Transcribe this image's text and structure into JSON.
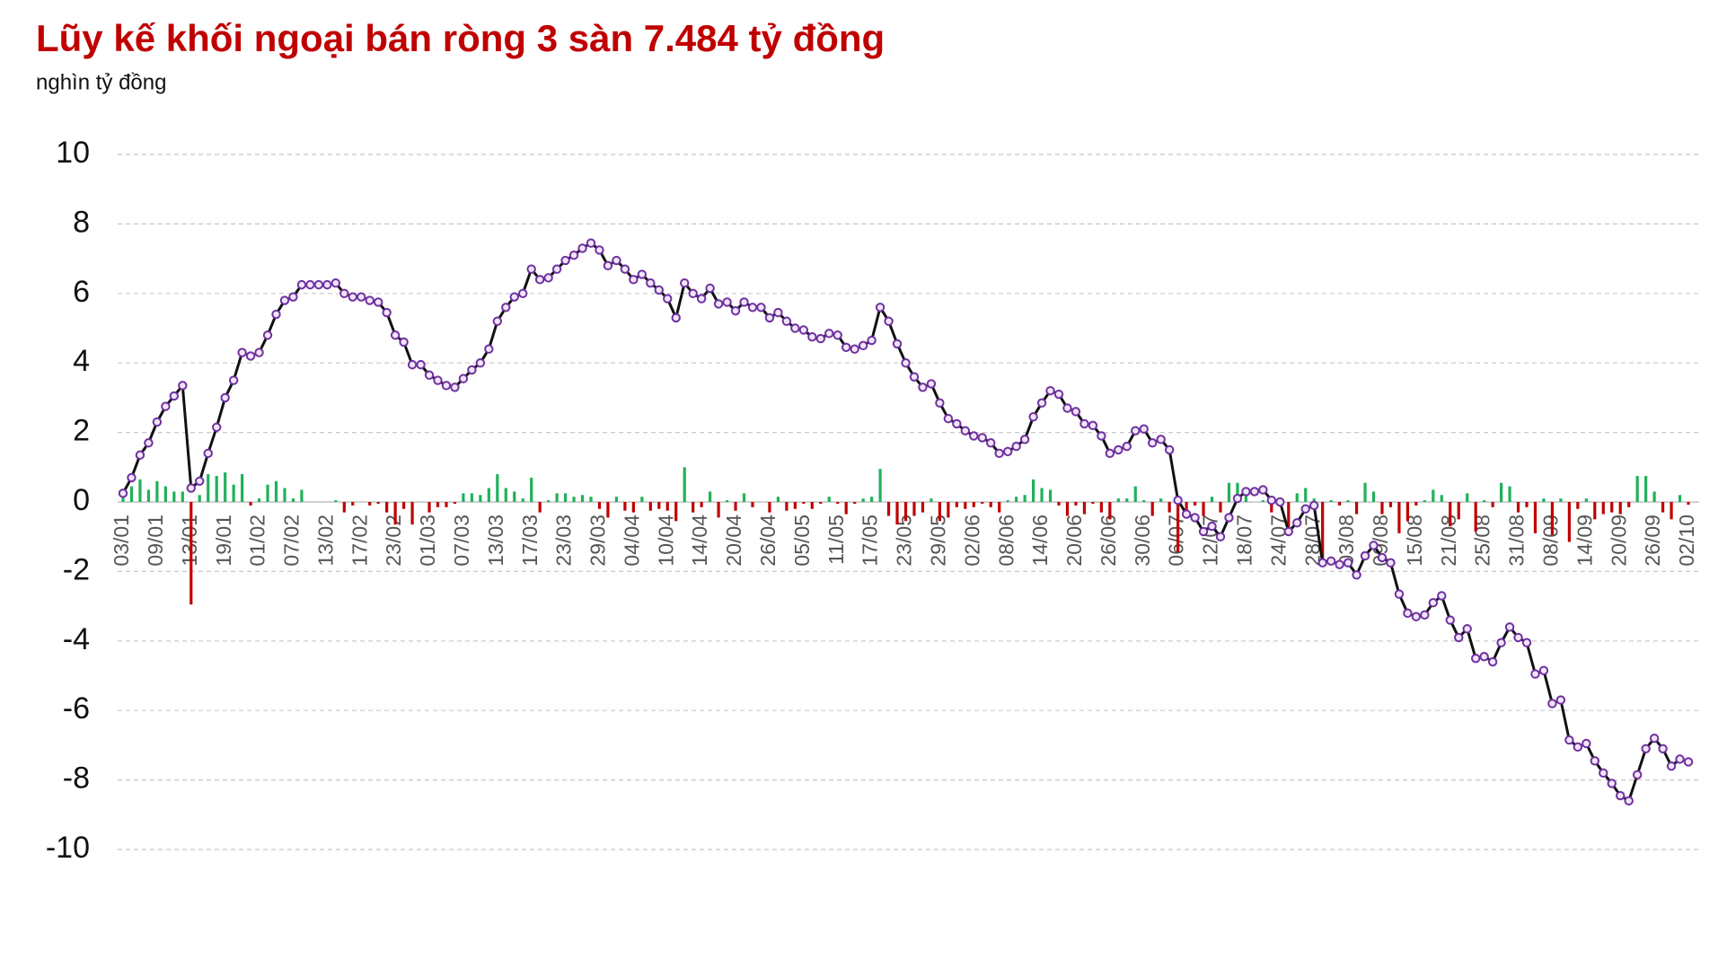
{
  "chart_data": {
    "type": "combo",
    "title": "Lũy kế khối ngoại bán ròng 3 sàn 7.484 tỷ đồng",
    "subtitle": "nghìn tỷ đồng",
    "categories": [
      "03/01",
      null,
      null,
      null,
      "09/01",
      null,
      null,
      null,
      "13/01",
      null,
      null,
      null,
      "19/01",
      null,
      null,
      null,
      "01/02",
      null,
      null,
      null,
      "07/02",
      null,
      null,
      null,
      "13/02",
      null,
      null,
      null,
      "17/02",
      null,
      null,
      null,
      "23/02",
      null,
      null,
      null,
      "01/03",
      null,
      null,
      null,
      "07/03",
      null,
      null,
      null,
      "13/03",
      null,
      null,
      null,
      "17/03",
      null,
      null,
      null,
      "23/03",
      null,
      null,
      null,
      "29/03",
      null,
      null,
      null,
      "04/04",
      null,
      null,
      null,
      "10/04",
      null,
      null,
      null,
      "14/04",
      null,
      null,
      null,
      "20/04",
      null,
      null,
      null,
      "26/04",
      null,
      null,
      null,
      "05/05",
      null,
      null,
      null,
      "11/05",
      null,
      null,
      null,
      "17/05",
      null,
      null,
      null,
      "23/05",
      null,
      null,
      null,
      "29/05",
      null,
      null,
      null,
      "02/06",
      null,
      null,
      null,
      "08/06",
      null,
      null,
      null,
      "14/06",
      null,
      null,
      null,
      "20/06",
      null,
      null,
      null,
      "26/06",
      null,
      null,
      null,
      "30/06",
      null,
      null,
      null,
      "06/07",
      null,
      null,
      null,
      "12/07",
      null,
      null,
      null,
      "18/07",
      null,
      null,
      null,
      "24/07",
      null,
      null,
      null,
      "28/07",
      null,
      null,
      null,
      "03/08",
      null,
      null,
      null,
      "09/08",
      null,
      null,
      null,
      "15/08",
      null,
      null,
      null,
      "21/08",
      null,
      null,
      null,
      "25/08",
      null,
      null,
      null,
      "31/08",
      null,
      null,
      null,
      "08/09",
      null,
      null,
      null,
      "14/09",
      null,
      null,
      null,
      "20/09",
      null,
      null,
      null,
      "26/09",
      null,
      null,
      null,
      "02/10"
    ],
    "series": [
      {
        "type": "bar",
        "color_positive": "#21b15a",
        "color_negative": "#c00000",
        "values": [
          0.25,
          0.45,
          0.65,
          0.35,
          0.6,
          0.45,
          0.3,
          0.3,
          -2.95,
          0.2,
          0.8,
          0.75,
          0.85,
          0.5,
          0.8,
          -0.1,
          0.1,
          0.5,
          0.6,
          0.4,
          0.1,
          0.35,
          0,
          0,
          0,
          0.05,
          -0.3,
          -0.1,
          0,
          -0.1,
          -0.05,
          -0.3,
          -0.65,
          -0.2,
          -0.65,
          0,
          -0.3,
          -0.15,
          -0.15,
          -0.05,
          0.25,
          0.25,
          0.2,
          0.4,
          0.8,
          0.4,
          0.3,
          0.1,
          0.7,
          -0.3,
          0.05,
          0.25,
          0.25,
          0.15,
          0.2,
          0.15,
          -0.2,
          -0.45,
          0.15,
          -0.25,
          -0.3,
          0.15,
          -0.25,
          -0.2,
          -0.25,
          -0.55,
          1.0,
          -0.3,
          -0.15,
          0.3,
          -0.45,
          0.05,
          -0.25,
          0.25,
          -0.15,
          0,
          -0.3,
          0.15,
          -0.25,
          -0.2,
          -0.05,
          -0.2,
          -0.05,
          0.15,
          -0.05,
          -0.35,
          -0.05,
          0.1,
          0.15,
          0.95,
          -0.4,
          -0.65,
          -0.55,
          -0.4,
          -0.3,
          0.1,
          -0.55,
          -0.45,
          -0.15,
          -0.2,
          -0.15,
          -0.05,
          -0.15,
          -0.3,
          0.05,
          0.15,
          0.2,
          0.65,
          0.4,
          0.35,
          -0.1,
          -0.4,
          -0.1,
          -0.35,
          -0.05,
          -0.3,
          -0.5,
          0.1,
          0.1,
          0.45,
          0.05,
          -0.4,
          0.1,
          -0.3,
          -1.45,
          -0.4,
          -0.1,
          -0.4,
          0.15,
          -0.3,
          0.55,
          0.55,
          0.2,
          0,
          0.05,
          -0.3,
          -0.05,
          -0.85,
          0.25,
          0.4,
          0.1,
          -1.65,
          0.05,
          -0.1,
          0.05,
          -0.35,
          0.55,
          0.3,
          -0.35,
          -0.15,
          -0.9,
          -0.55,
          -0.1,
          0.05,
          0.35,
          0.2,
          -0.7,
          -0.5,
          0.25,
          -0.85,
          0.05,
          -0.15,
          0.55,
          0.45,
          -0.3,
          -0.15,
          -0.9,
          0.1,
          -0.95,
          0.1,
          -1.15,
          -0.2,
          0.1,
          -0.5,
          -0.35,
          -0.3,
          -0.35,
          -0.15,
          0.75,
          0.75,
          0.3,
          -0.3,
          -0.5,
          0.2,
          -0.08
        ]
      },
      {
        "type": "line",
        "color": "#111111",
        "marker_color": "#7030a0",
        "values": [
          0.25,
          0.7,
          1.35,
          1.7,
          2.3,
          2.75,
          3.05,
          3.35,
          0.4,
          0.6,
          1.4,
          2.15,
          3.0,
          3.5,
          4.3,
          4.2,
          4.3,
          4.8,
          5.4,
          5.8,
          5.9,
          6.25,
          6.25,
          6.25,
          6.25,
          6.3,
          6.0,
          5.9,
          5.9,
          5.8,
          5.75,
          5.45,
          4.8,
          4.6,
          3.95,
          3.95,
          3.65,
          3.5,
          3.35,
          3.3,
          3.55,
          3.8,
          4.0,
          4.4,
          5.2,
          5.6,
          5.9,
          6.0,
          6.7,
          6.4,
          6.45,
          6.7,
          6.95,
          7.1,
          7.3,
          7.45,
          7.25,
          6.8,
          6.95,
          6.7,
          6.4,
          6.55,
          6.3,
          6.1,
          5.85,
          5.3,
          6.3,
          6.0,
          5.85,
          6.15,
          5.7,
          5.75,
          5.5,
          5.75,
          5.6,
          5.6,
          5.3,
          5.45,
          5.2,
          5.0,
          4.95,
          4.75,
          4.7,
          4.85,
          4.8,
          4.45,
          4.4,
          4.5,
          4.65,
          5.6,
          5.2,
          4.55,
          4.0,
          3.6,
          3.3,
          3.4,
          2.85,
          2.4,
          2.25,
          2.05,
          1.9,
          1.85,
          1.7,
          1.4,
          1.45,
          1.6,
          1.8,
          2.45,
          2.85,
          3.2,
          3.1,
          2.7,
          2.6,
          2.25,
          2.2,
          1.9,
          1.4,
          1.5,
          1.6,
          2.05,
          2.1,
          1.7,
          1.8,
          1.5,
          0.05,
          -0.35,
          -0.45,
          -0.85,
          -0.7,
          -1.0,
          -0.45,
          0.1,
          0.3,
          0.3,
          0.35,
          0.05,
          0.0,
          -0.85,
          -0.6,
          -0.2,
          -0.1,
          -1.75,
          -1.7,
          -1.8,
          -1.75,
          -2.1,
          -1.55,
          -1.25,
          -1.6,
          -1.75,
          -2.65,
          -3.2,
          -3.3,
          -3.25,
          -2.9,
          -2.7,
          -3.4,
          -3.9,
          -3.65,
          -4.5,
          -4.45,
          -4.6,
          -4.05,
          -3.6,
          -3.9,
          -4.05,
          -4.95,
          -4.85,
          -5.8,
          -5.7,
          -6.85,
          -7.05,
          -6.95,
          -7.45,
          -7.8,
          -8.1,
          -8.45,
          -8.6,
          -7.85,
          -7.1,
          -6.8,
          -7.1,
          -7.6,
          -7.4,
          -7.48
        ]
      }
    ],
    "ylim": [
      -10,
      10
    ],
    "yticks": [
      -10,
      -8,
      -6,
      -4,
      -2,
      0,
      2,
      4,
      6,
      8,
      10
    ],
    "grid": true
  }
}
